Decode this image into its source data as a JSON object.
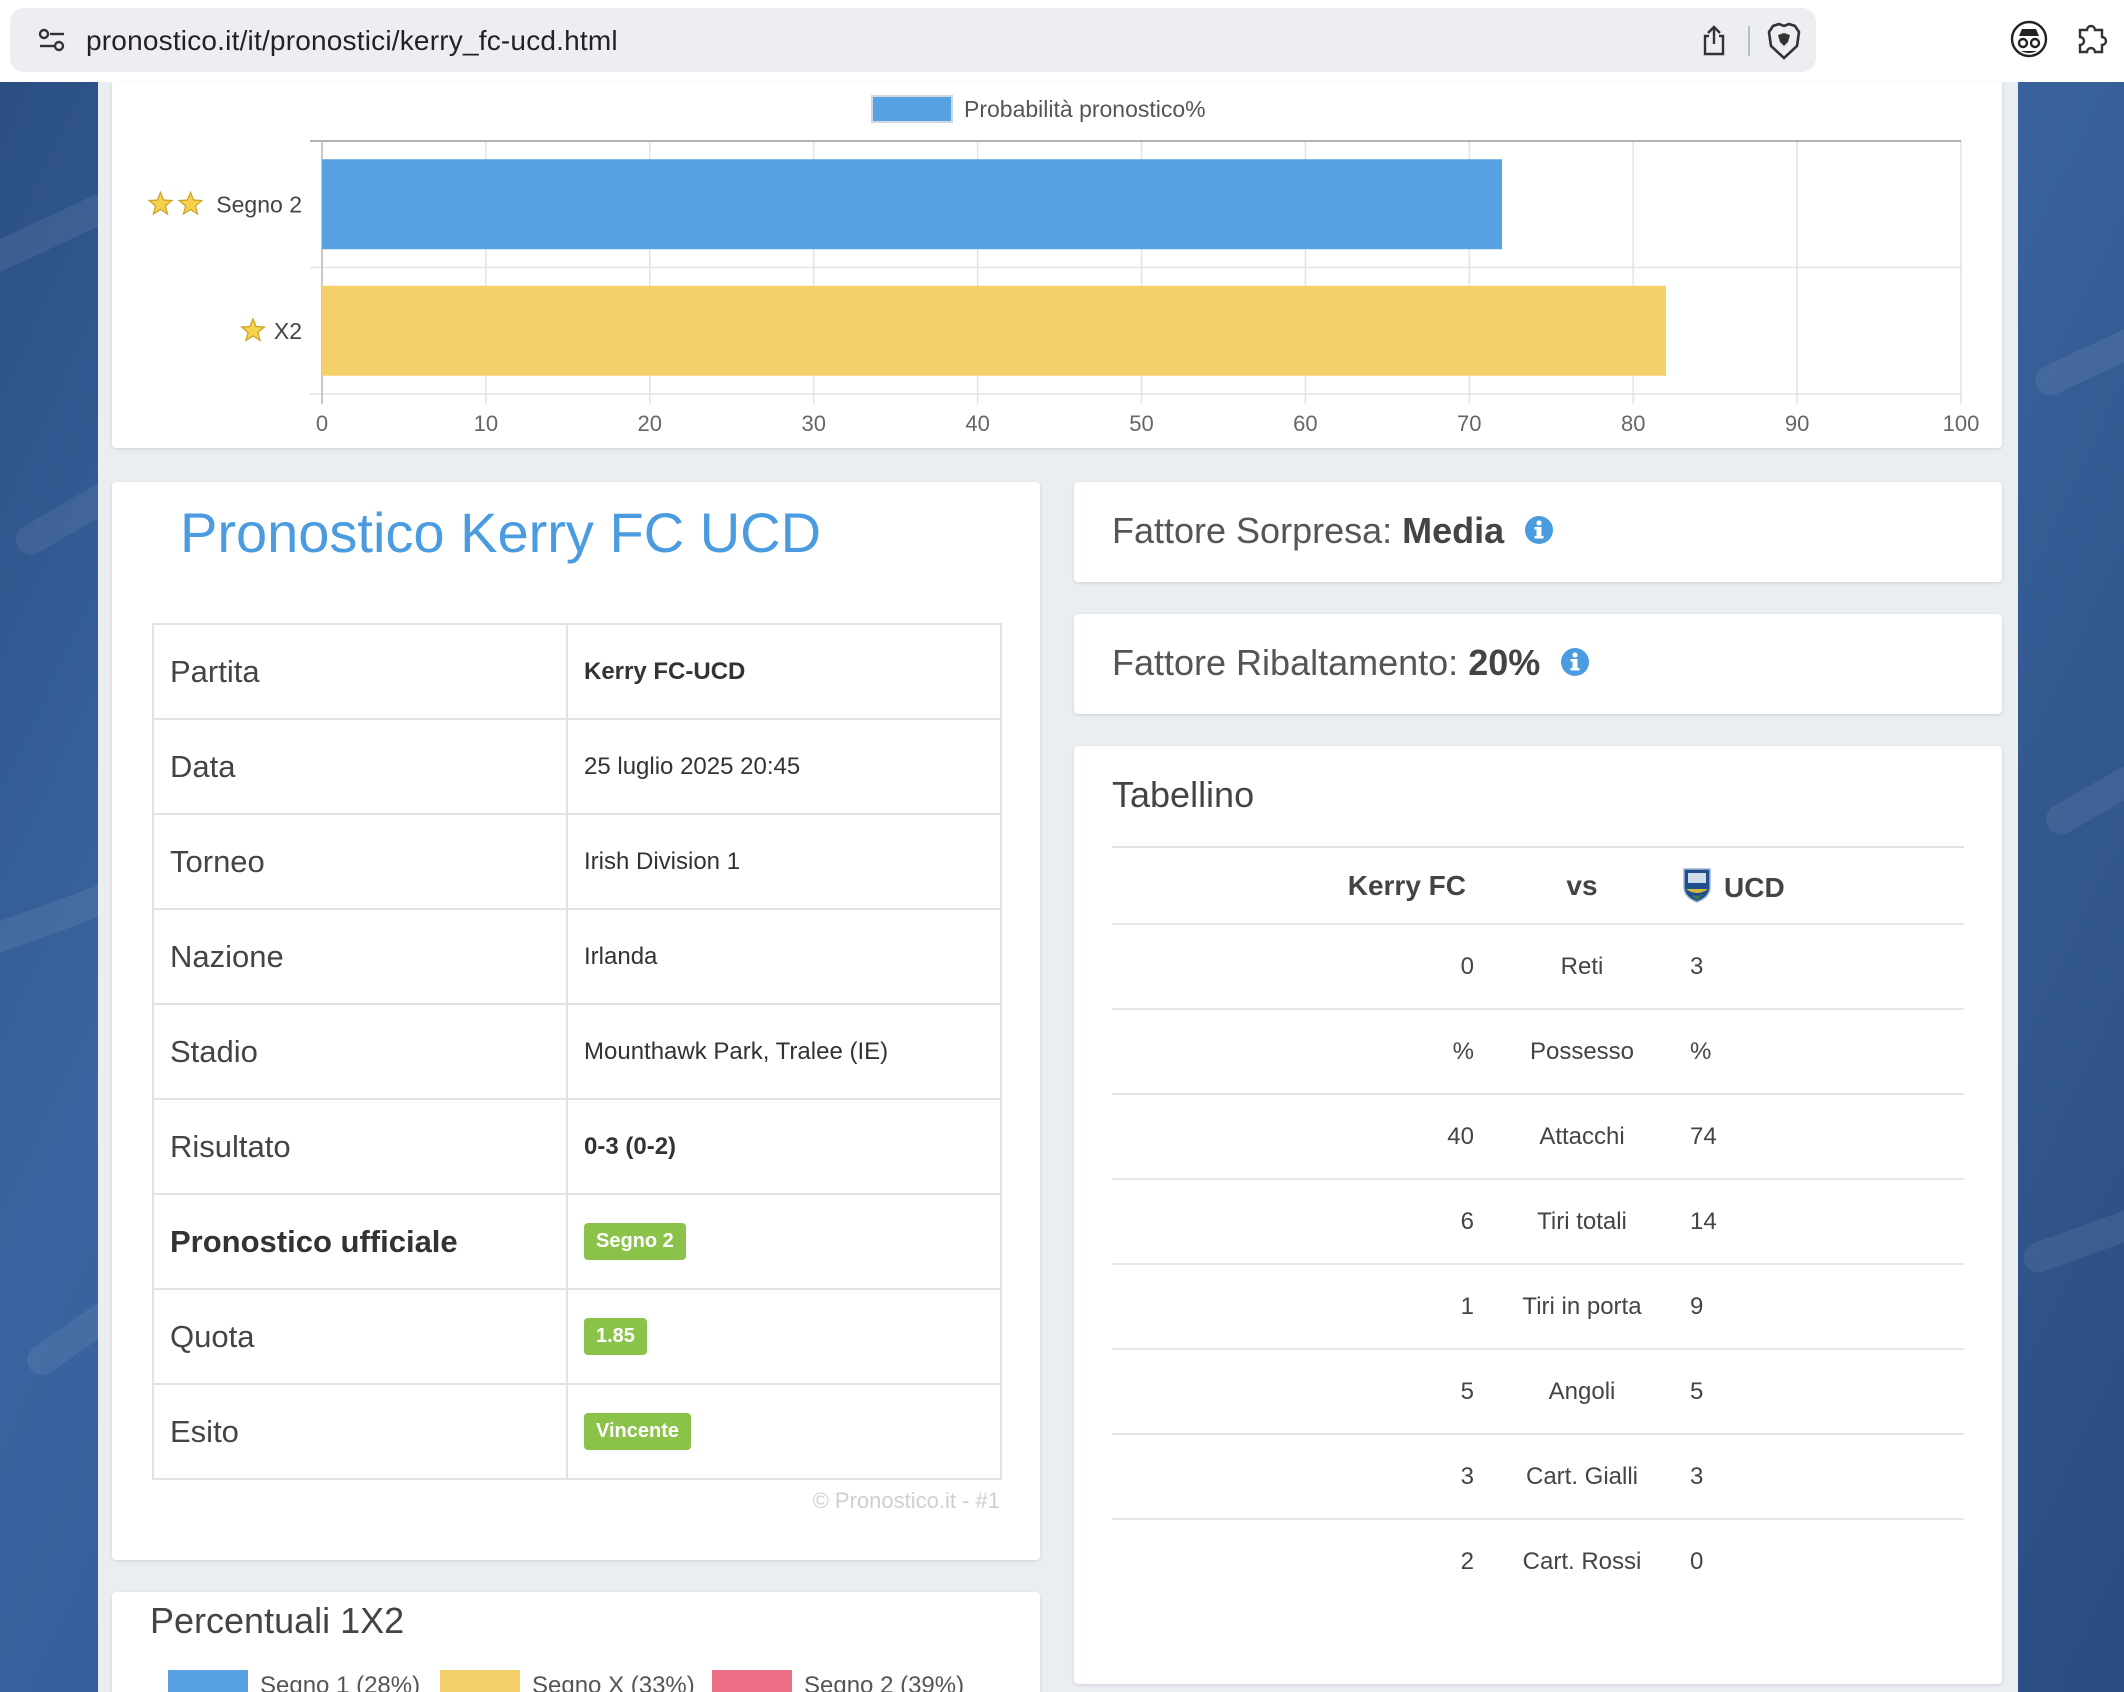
{
  "browser": {
    "url": "pronostico.it/it/pronostici/kerry_fc-ucd.html"
  },
  "chart_data": {
    "type": "bar",
    "orientation": "horizontal",
    "legend": "top-center",
    "series": [
      {
        "name": "Probabilità pronostico%",
        "values": [
          72,
          82
        ],
        "colors": [
          "#58a2e4",
          "#f5cf6a"
        ]
      }
    ],
    "categories": [
      "Segno 2",
      "X2"
    ],
    "category_stars": [
      2,
      1
    ],
    "xlim": [
      0,
      100
    ],
    "xticks": [
      0,
      10,
      20,
      30,
      40,
      50,
      60,
      70,
      80,
      90,
      100
    ],
    "grid": true
  },
  "pronostico": {
    "title": "Pronostico Kerry FC UCD",
    "rows": [
      {
        "label": "Partita",
        "value": "Kerry FC-UCD"
      },
      {
        "label": "Data",
        "value": "25 luglio 2025 20:45"
      },
      {
        "label": "Torneo",
        "value": "Irish Division 1"
      },
      {
        "label": "Nazione",
        "value": "Irlanda"
      },
      {
        "label": "Stadio",
        "value": "Mounthawk Park, Tralee (IE)"
      },
      {
        "label": "Risultato",
        "value": "0-3 (0-2)"
      },
      {
        "label": "Pronostico ufficiale",
        "value": "Segno 2"
      },
      {
        "label": "Quota",
        "value": "1.85"
      },
      {
        "label": "Esito",
        "value": "Vincente"
      }
    ],
    "copyright": "© Pronostico.it - #1"
  },
  "percentuali": {
    "title": "Percentuali 1X2",
    "legend": [
      {
        "label": "Segno 1 (28%)",
        "color": "#58a2e4"
      },
      {
        "label": "Segno X (33%)",
        "color": "#f5cf6a"
      },
      {
        "label": "Segno 2 (39%)",
        "color": "#ec6f86"
      }
    ]
  },
  "fattori": {
    "sorpresa_label": "Fattore Sorpresa:",
    "sorpresa_value": "Media",
    "ribaltamento_label": "Fattore Ribaltamento:",
    "ribaltamento_value": "20%"
  },
  "tabellino": {
    "title": "Tabellino",
    "home": "Kerry FC",
    "vs": "vs",
    "away": "UCD",
    "rows": [
      {
        "home": "0",
        "stat": "Reti",
        "away": "3"
      },
      {
        "home": "%",
        "stat": "Possesso",
        "away": "%"
      },
      {
        "home": "40",
        "stat": "Attacchi",
        "away": "74"
      },
      {
        "home": "6",
        "stat": "Tiri totali",
        "away": "14"
      },
      {
        "home": "1",
        "stat": "Tiri in porta",
        "away": "9"
      },
      {
        "home": "5",
        "stat": "Angoli",
        "away": "5"
      },
      {
        "home": "3",
        "stat": "Cart. Gialli",
        "away": "3"
      },
      {
        "home": "2",
        "stat": "Cart. Rossi",
        "away": "0"
      }
    ]
  }
}
